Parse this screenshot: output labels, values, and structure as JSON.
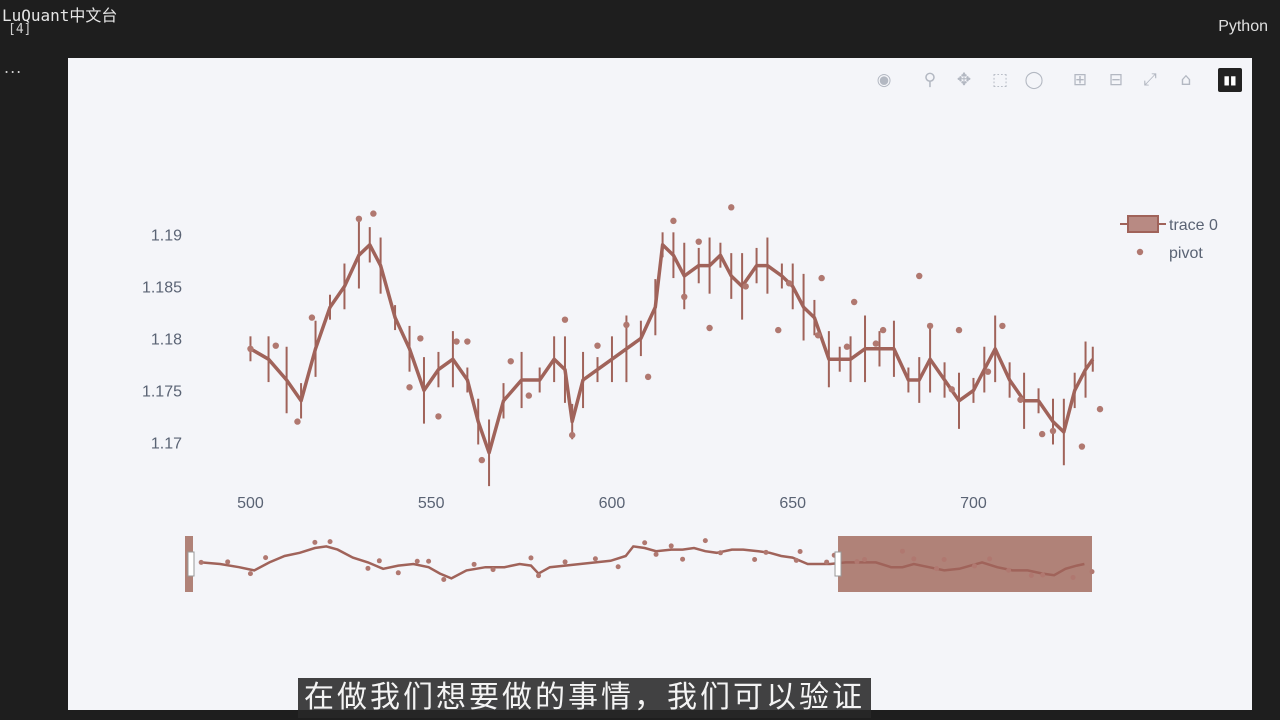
{
  "notebook": {
    "brand": "LuQuant中文台",
    "cell_number": "[4]",
    "cell_menu": "...",
    "kernel_name": "Python"
  },
  "modebar": {
    "icons": [
      "camera-icon",
      "zoom-icon",
      "pan-icon",
      "box-select-icon",
      "lasso-icon",
      "zoom-in-icon",
      "zoom-out-icon",
      "autoscale-icon",
      "reset-axes-icon",
      "plotly-logo-icon"
    ]
  },
  "subtitle": "在做我们想要做的事情，我们可以验证",
  "chart_data": {
    "type": "line",
    "title": "",
    "xlabel": "",
    "ylabel": "",
    "x_ticks": [
      500,
      550,
      600,
      650,
      700
    ],
    "y_ticks": [
      1.17,
      1.175,
      1.18,
      1.185,
      1.19
    ],
    "y_tick_labels": [
      "1.17",
      "1.175",
      "1.18",
      "1.185",
      "1.19"
    ],
    "xlim": [
      496,
      735
    ],
    "ylim": [
      1.1685,
      1.1935
    ],
    "legend_position": "top-right",
    "rangeslider": true,
    "rangeslider_selection": [
      668,
      735
    ],
    "colors": {
      "trace": "#a0635a",
      "pivot": "#b07870",
      "selection": "#b08278"
    },
    "series": [
      {
        "name": "trace 0",
        "kind": "candlestick",
        "x": [
          500,
          505,
          510,
          514,
          518,
          522,
          526,
          530,
          533,
          536,
          540,
          544,
          548,
          552,
          556,
          560,
          563,
          566,
          570,
          575,
          580,
          584,
          587,
          589,
          592,
          596,
          600,
          604,
          608,
          612,
          614,
          617,
          620,
          624,
          627,
          630,
          633,
          636,
          640,
          643,
          647,
          650,
          653,
          656,
          660,
          663,
          666,
          670,
          674,
          678,
          682,
          685,
          688,
          692,
          696,
          700,
          703,
          706,
          710,
          714,
          718,
          722,
          725,
          728,
          731,
          733
        ],
        "y": [
          1.179,
          1.178,
          1.176,
          1.174,
          1.179,
          1.183,
          1.185,
          1.188,
          1.189,
          1.187,
          1.182,
          1.179,
          1.175,
          1.177,
          1.178,
          1.176,
          1.172,
          1.169,
          1.174,
          1.176,
          1.176,
          1.178,
          1.177,
          1.172,
          1.176,
          1.177,
          1.178,
          1.179,
          1.18,
          1.183,
          1.189,
          1.188,
          1.186,
          1.187,
          1.187,
          1.188,
          1.186,
          1.185,
          1.187,
          1.187,
          1.186,
          1.185,
          1.183,
          1.182,
          1.178,
          1.178,
          1.178,
          1.179,
          1.179,
          1.179,
          1.176,
          1.176,
          1.178,
          1.176,
          1.174,
          1.175,
          1.177,
          1.179,
          1.176,
          1.174,
          1.174,
          1.172,
          1.171,
          1.175,
          1.177,
          1.178
        ]
      },
      {
        "name": "pivot",
        "kind": "markers",
        "x": [
          500,
          507,
          513,
          517,
          530,
          534,
          544,
          547,
          552,
          557,
          560,
          564,
          572,
          577,
          587,
          589,
          596,
          604,
          610,
          617,
          620,
          624,
          627,
          633,
          637,
          646,
          649,
          657,
          658,
          665,
          667,
          673,
          675,
          685,
          688,
          694,
          696,
          704,
          708,
          713,
          719,
          722,
          730,
          735
        ],
        "y": [
          1.179,
          1.1793,
          1.172,
          1.182,
          1.1915,
          1.192,
          1.1753,
          1.18,
          1.1725,
          1.1797,
          1.1797,
          1.1683,
          1.1778,
          1.1745,
          1.1818,
          1.1707,
          1.1793,
          1.1813,
          1.1763,
          1.1913,
          1.184,
          1.1893,
          1.181,
          1.1926,
          1.185,
          1.1808,
          1.1853,
          1.1803,
          1.1858,
          1.1792,
          1.1835,
          1.1795,
          1.1808,
          1.186,
          1.1812,
          1.1751,
          1.1808,
          1.1768,
          1.1812,
          1.1741,
          1.1708,
          1.1711,
          1.1696,
          1.1732
        ]
      }
    ]
  }
}
